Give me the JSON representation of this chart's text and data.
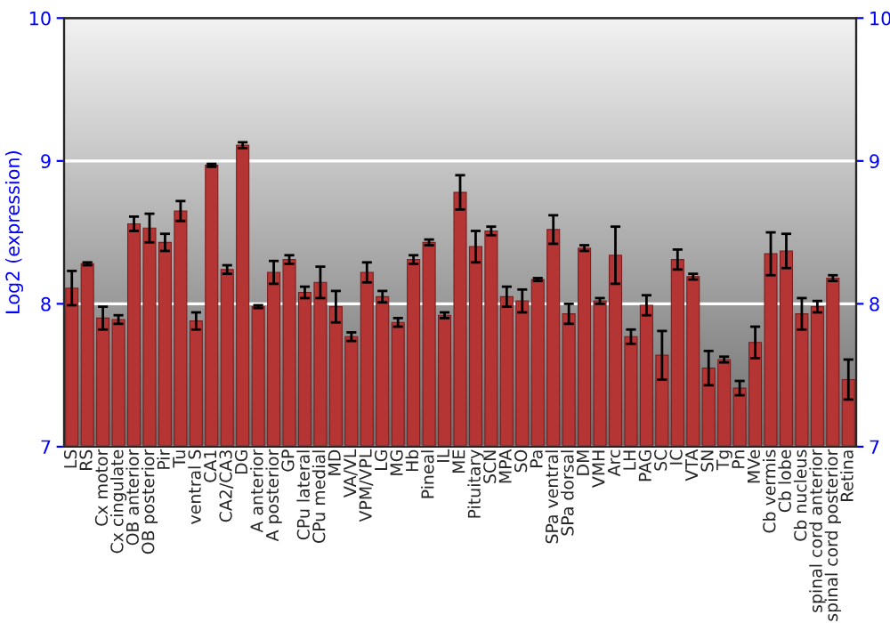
{
  "chart_data": {
    "type": "bar",
    "ylabel": "Log2 (expression)",
    "categories": [
      "LS",
      "RS",
      "Cx motor",
      "Cx cingulate",
      "OB anterior",
      "OB posterior",
      "Pir",
      "Tu",
      "ventral S",
      "CA1",
      "CA2/CA3",
      "DG",
      "A anterior",
      "A posterior",
      "GP",
      "CPu lateral",
      "CPu medial",
      "MD",
      "VA/VL",
      "VPM/VPL",
      "LG",
      "MG",
      "Hb",
      "Pineal",
      "IL",
      "ME",
      "Pituitary",
      "SCN",
      "MPA",
      "SO",
      "Pa",
      "SPa ventral",
      "SPa dorsal",
      "DM",
      "VMH",
      "Arc",
      "LH",
      "PAG",
      "SC",
      "IC",
      "VTA",
      "SN",
      "Tg",
      "Pn",
      "MVe",
      "Cb vermis",
      "Cb lobe",
      "Cb nucleus",
      "spinal cord anterior",
      "spinal cord posterior",
      "Retina"
    ],
    "values": [
      8.11,
      8.28,
      7.9,
      7.89,
      8.56,
      8.53,
      8.43,
      8.65,
      7.88,
      8.97,
      8.24,
      9.11,
      7.98,
      8.22,
      8.31,
      8.08,
      8.15,
      7.98,
      7.77,
      8.22,
      8.05,
      7.87,
      8.31,
      8.43,
      7.92,
      8.78,
      8.4,
      8.51,
      8.05,
      8.02,
      8.17,
      8.52,
      7.93,
      8.39,
      8.02,
      8.34,
      7.77,
      7.99,
      7.64,
      8.31,
      8.19,
      7.55,
      7.61,
      7.41,
      7.73,
      8.35,
      8.37,
      7.93,
      7.98,
      8.18,
      7.47
    ],
    "errors": [
      0.12,
      0.01,
      0.08,
      0.03,
      0.05,
      0.1,
      0.06,
      0.07,
      0.06,
      0.01,
      0.03,
      0.02,
      0.01,
      0.08,
      0.03,
      0.04,
      0.11,
      0.11,
      0.03,
      0.07,
      0.04,
      0.03,
      0.03,
      0.02,
      0.02,
      0.12,
      0.11,
      0.03,
      0.07,
      0.08,
      0.01,
      0.1,
      0.07,
      0.02,
      0.02,
      0.2,
      0.05,
      0.07,
      0.17,
      0.07,
      0.02,
      0.12,
      0.02,
      0.05,
      0.11,
      0.15,
      0.12,
      0.11,
      0.04,
      0.02,
      0.14
    ],
    "color": "#b53535",
    "ylim": [
      7,
      10
    ],
    "yticks": [
      7,
      8,
      9,
      10
    ],
    "y2lim": [
      7,
      10
    ],
    "y2ticks": [
      7,
      8,
      9,
      10
    ],
    "grid": "y",
    "legend": false
  }
}
